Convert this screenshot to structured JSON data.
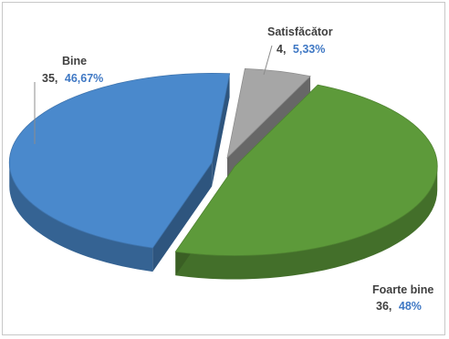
{
  "chart_data": {
    "type": "pie",
    "style": "3d-exploded",
    "categories": [
      "Bine",
      "Satisfăcător",
      "Foarte bine"
    ],
    "values": [
      35,
      4,
      36
    ],
    "percent_labels": [
      "46,67%",
      "5,33%",
      "48%"
    ],
    "colors": [
      "#4a89cc",
      "#a6a6a6",
      "#5d9a3a"
    ],
    "legend": "none",
    "title": ""
  },
  "labels": {
    "bine": {
      "name": "Bine",
      "value": "35,",
      "percent": "46,67%"
    },
    "satisfacator": {
      "name": "Satisfăcător",
      "value": "4,",
      "percent": "5,33%"
    },
    "foarte_bine": {
      "name": "Foarte bine",
      "value": "36,",
      "percent": "48%"
    }
  }
}
